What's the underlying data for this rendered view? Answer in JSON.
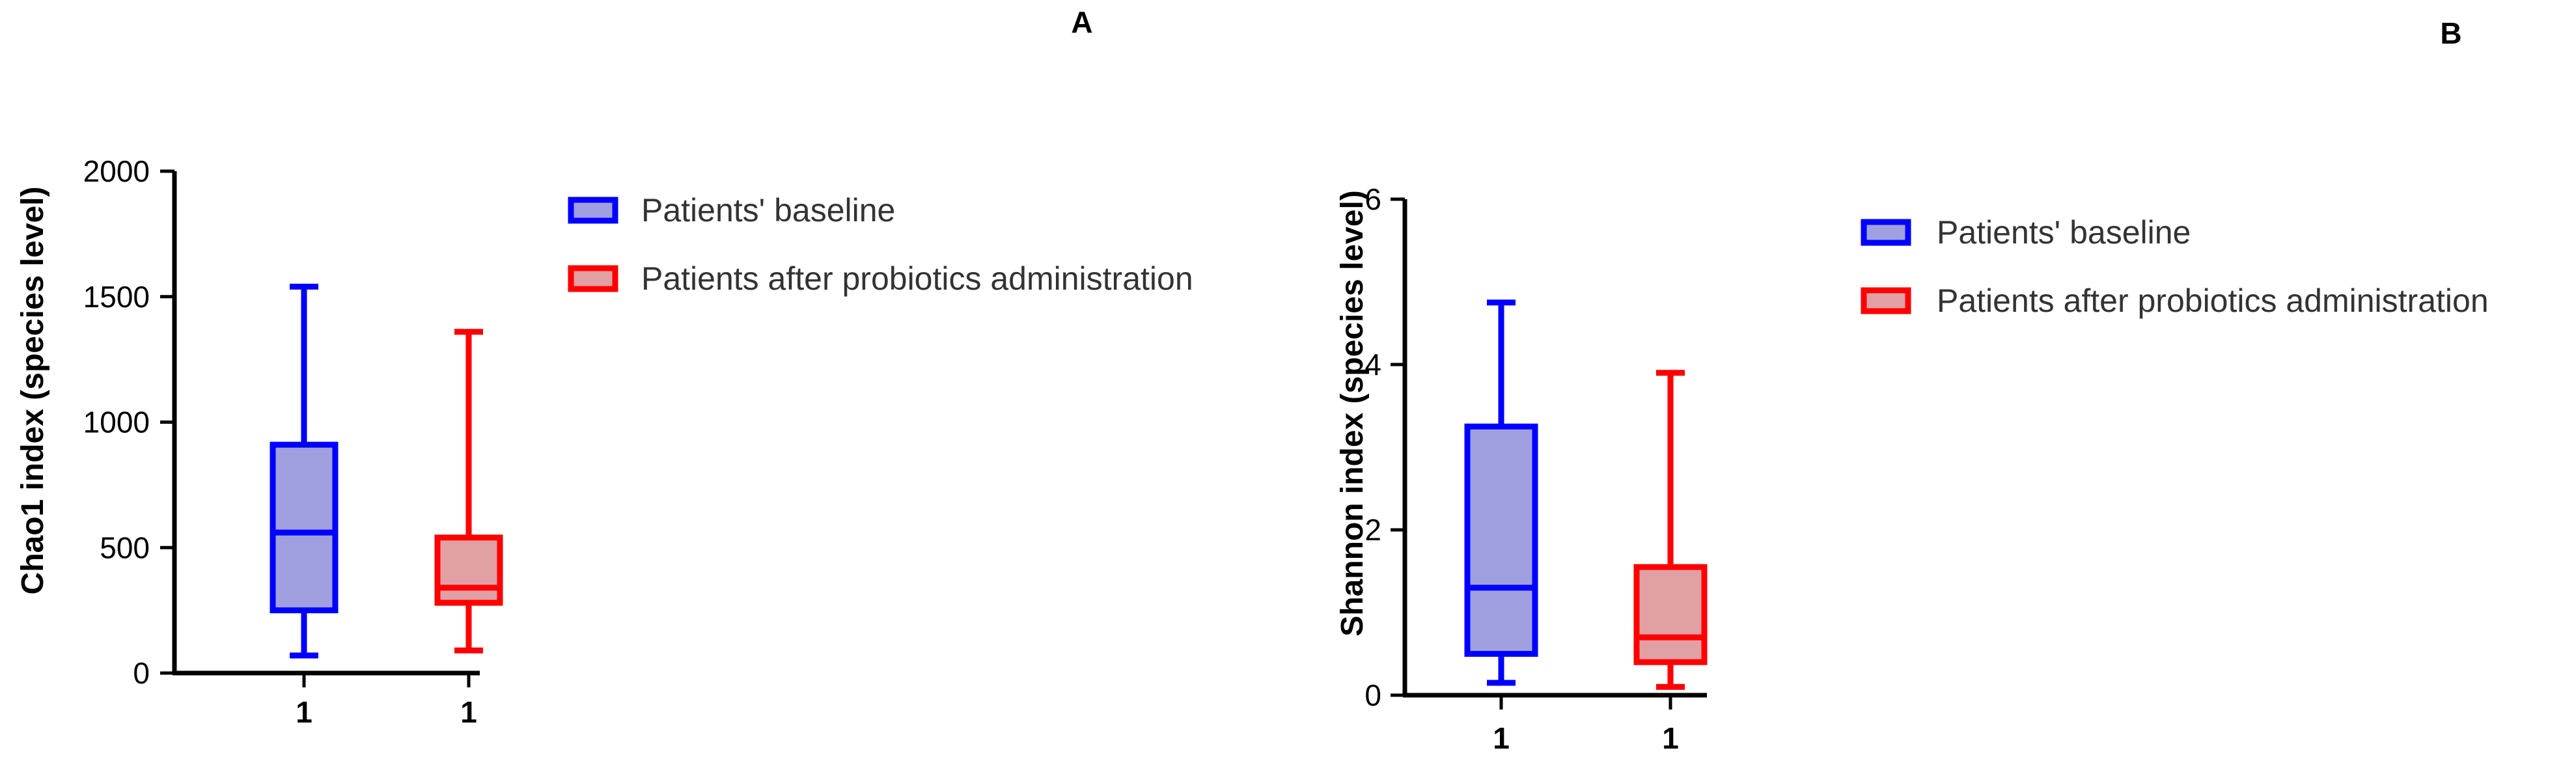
{
  "chart_data": [
    {
      "type": "box",
      "panel_label": "A",
      "title": "",
      "xlabel": "",
      "ylabel": "Chao1 index (species level)",
      "ylim": [
        0,
        2000
      ],
      "yticks": [
        0,
        500,
        1000,
        1500,
        2000
      ],
      "ytick_labels": [
        "0",
        "500",
        "1000",
        "1500",
        "2000"
      ],
      "categories": [
        "1",
        "1"
      ],
      "legend": {
        "placement": "top-right",
        "entries": [
          "Patients' baseline",
          "Patients after probiotics administration"
        ]
      },
      "series": [
        {
          "name": "Patients' baseline",
          "color": "#0000ff",
          "fill": "#a0a0e0",
          "min": 70,
          "q1": 250,
          "median": 560,
          "q3": 910,
          "max": 1540
        },
        {
          "name": "Patients after probiotics administration",
          "color": "#ff0000",
          "fill": "#e0a0a4",
          "min": 90,
          "q1": 280,
          "median": 340,
          "q3": 540,
          "max": 1360
        }
      ]
    },
    {
      "type": "box",
      "panel_label": "B",
      "title": "",
      "xlabel": "",
      "ylabel": "Shannon index (species level)",
      "ylim": [
        0,
        6
      ],
      "yticks": [
        0,
        2,
        4,
        6
      ],
      "ytick_labels": [
        "0",
        "2",
        "4",
        "6"
      ],
      "categories": [
        "1",
        "1"
      ],
      "legend": {
        "placement": "top-right",
        "entries": [
          "Patients' baseline",
          "Patients after probiotics administration"
        ]
      },
      "series": [
        {
          "name": "Patients' baseline",
          "color": "#0000ff",
          "fill": "#a0a0e0",
          "min": 0.15,
          "q1": 0.5,
          "median": 1.3,
          "q3": 3.25,
          "max": 4.75
        },
        {
          "name": "Patients after probiotics administration",
          "color": "#ff0000",
          "fill": "#e0a0a4",
          "min": 0.1,
          "q1": 0.4,
          "median": 0.7,
          "q3": 1.55,
          "max": 3.9
        }
      ]
    }
  ]
}
